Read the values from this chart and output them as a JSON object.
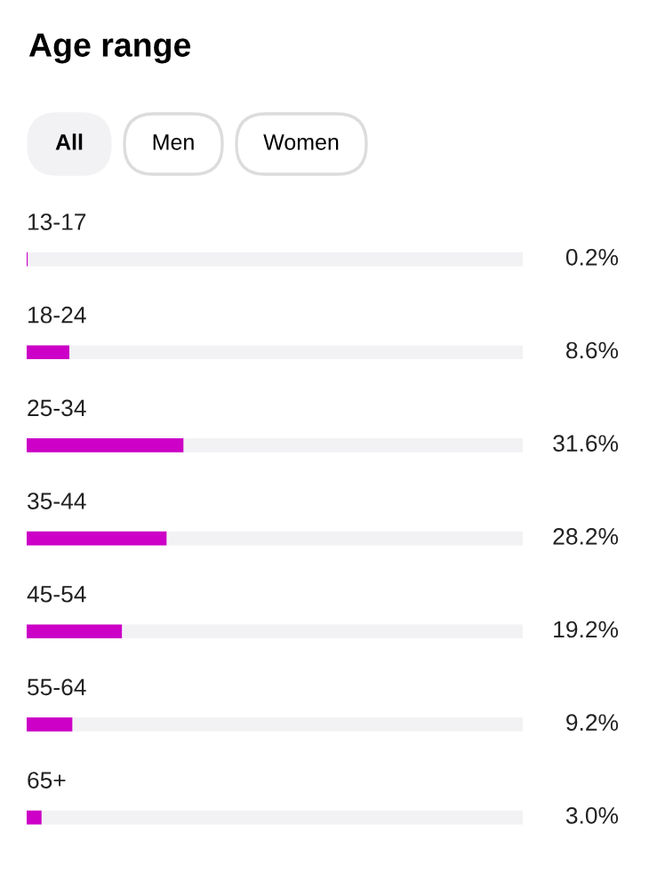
{
  "chart_data": {
    "type": "bar",
    "orientation": "horizontal",
    "title": "Age range",
    "annotations": [
      "All",
      "Men",
      "Women"
    ],
    "categories": [
      "13-17",
      "18-24",
      "25-34",
      "35-44",
      "45-54",
      "55-64",
      "65+"
    ],
    "values": [
      0.2,
      8.6,
      31.6,
      28.2,
      19.2,
      9.2,
      3.0
    ],
    "value_labels": [
      "0.2%",
      "8.6%",
      "31.6%",
      "28.2%",
      "19.2%",
      "9.2%",
      "3.0%"
    ],
    "color": "#cc00c6",
    "xlim": [
      0,
      100
    ]
  }
}
